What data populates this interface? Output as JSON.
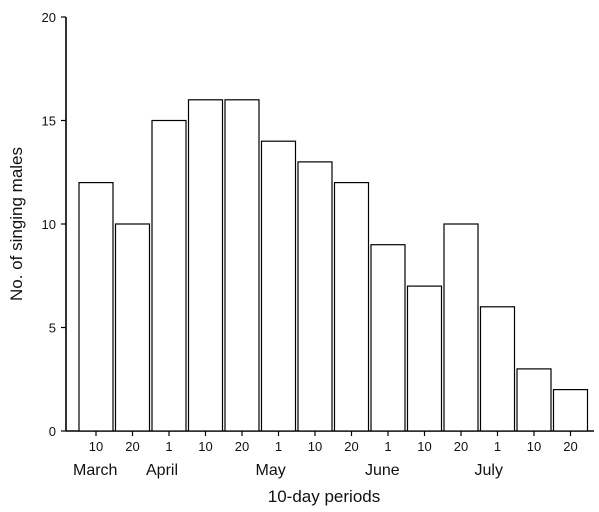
{
  "chart_data": {
    "type": "bar",
    "title": "",
    "xlabel": "10-day periods",
    "ylabel": "No. of singing males",
    "ylim": [
      0,
      20
    ],
    "y_ticks": [
      "0",
      "5",
      "10",
      "15",
      "20"
    ],
    "categories": [
      "10",
      "20",
      "1",
      "10",
      "20",
      "1",
      "10",
      "20",
      "1",
      "10",
      "20",
      "1",
      "10",
      "20"
    ],
    "months": [
      {
        "label": "March",
        "start": 0
      },
      {
        "label": "April",
        "start": 2
      },
      {
        "label": "May",
        "start": 5
      },
      {
        "label": "June",
        "start": 8
      },
      {
        "label": "July",
        "start": 11
      }
    ],
    "values": [
      12,
      10,
      15,
      16,
      16,
      14,
      13,
      12,
      9,
      7,
      10,
      6,
      3,
      2
    ],
    "grid": false,
    "colors": {
      "bar_fill": "#ffffff",
      "bar_stroke": "#000000",
      "axis": "#000000",
      "text": "#111111"
    }
  }
}
